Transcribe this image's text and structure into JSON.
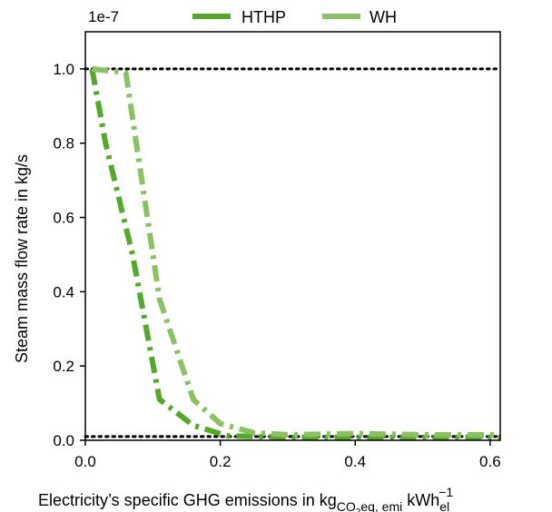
{
  "chart_data": {
    "type": "line",
    "xlabel_main": "Electricity’s specific GHG emissions in kg",
    "xlabel_sub_co2": "CO",
    "xlabel_sub_two": "2",
    "xlabel_sub_rest": "eq, emi",
    "xlabel_unit": " kWh",
    "xlabel_unit_sub": "el",
    "xlabel_unit_sup": "−1",
    "ylabel": "Steam mass flow rate in kg/s",
    "y_offset_label": "1e-7",
    "xlim": [
      0,
      0.615
    ],
    "ylim": [
      0,
      1.1
    ],
    "x_ticks": [
      0.0,
      0.2,
      0.4,
      0.6
    ],
    "x_tick_labels": [
      "0.0",
      "0.2",
      "0.4",
      "0.6"
    ],
    "y_ticks": [
      0.0,
      0.2,
      0.4,
      0.6,
      0.8,
      1.0
    ],
    "y_tick_labels": [
      "0.0",
      "0.2",
      "0.4",
      "0.6",
      "0.8",
      "1.0"
    ],
    "legend_position": "top-center",
    "reference_lines": [
      {
        "y": 1.0,
        "style": "dotted",
        "color": "#000000"
      },
      {
        "y": 0.01,
        "style": "dotted",
        "color": "#000000"
      }
    ],
    "series": [
      {
        "name": "HTHP",
        "color": "#55a82a",
        "x": [
          0.01,
          0.03,
          0.07,
          0.11,
          0.16,
          0.21,
          0.3,
          0.4,
          0.5,
          0.615
        ],
        "y": [
          1.0,
          0.8,
          0.5,
          0.11,
          0.04,
          0.012,
          0.008,
          0.008,
          0.008,
          0.008
        ]
      },
      {
        "name": "WH",
        "color": "#8cc163",
        "x": [
          0.01,
          0.06,
          0.11,
          0.16,
          0.2,
          0.25,
          0.3,
          0.4,
          0.5,
          0.615
        ],
        "y": [
          1.0,
          0.99,
          0.38,
          0.11,
          0.045,
          0.02,
          0.015,
          0.018,
          0.015,
          0.015
        ]
      }
    ]
  }
}
